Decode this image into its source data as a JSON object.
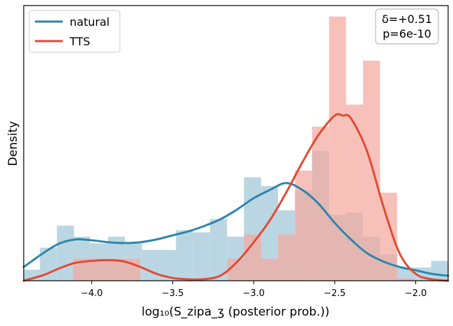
{
  "chart_data": {
    "type": "histogram",
    "xlabel": "log₁₀(S_zipa_ʒ (posterior prob.))",
    "ylabel": "Density",
    "xlim": [
      -4.42,
      -1.8
    ],
    "ylim": [
      0,
      1.0
    ],
    "x_ticks": [
      -4.0,
      -3.5,
      -3.0,
      -2.5,
      -2.0
    ],
    "x_tick_labels": [
      "−4.0",
      "−3.5",
      "−3.0",
      "−2.5",
      "−2.0"
    ],
    "y_ticks_shown": false,
    "grid": false,
    "legend_position": "top-left",
    "annotation": {
      "lines": [
        "δ=+0.51",
        "p=6e-10"
      ],
      "position": "top-right"
    },
    "series": [
      {
        "name": "natural",
        "color": "#2e86ab",
        "hist_color": "#b7d4e1",
        "hist_bins": [
          {
            "x0": -4.42,
            "x1": -4.32,
            "h": 0.04
          },
          {
            "x0": -4.32,
            "x1": -4.215,
            "h": 0.12
          },
          {
            "x0": -4.215,
            "x1": -4.11,
            "h": 0.2
          },
          {
            "x0": -4.11,
            "x1": -4.01,
            "h": 0.16
          },
          {
            "x0": -4.01,
            "x1": -3.9,
            "h": 0.136
          },
          {
            "x0": -3.9,
            "x1": -3.795,
            "h": 0.16
          },
          {
            "x0": -3.795,
            "x1": -3.69,
            "h": 0.136
          },
          {
            "x0": -3.69,
            "x1": -3.585,
            "h": 0.112
          },
          {
            "x0": -3.585,
            "x1": -3.48,
            "h": 0.112
          },
          {
            "x0": -3.48,
            "x1": -3.375,
            "h": 0.184
          },
          {
            "x0": -3.375,
            "x1": -3.27,
            "h": 0.176
          },
          {
            "x0": -3.27,
            "x1": -3.165,
            "h": 0.224
          },
          {
            "x0": -3.165,
            "x1": -3.06,
            "h": 0.16
          },
          {
            "x0": -3.06,
            "x1": -2.955,
            "h": 0.376
          },
          {
            "x0": -2.955,
            "x1": -2.85,
            "h": 0.344
          },
          {
            "x0": -2.85,
            "x1": -2.745,
            "h": 0.256
          },
          {
            "x0": -2.745,
            "x1": -2.64,
            "h": 0.328
          },
          {
            "x0": -2.64,
            "x1": -2.535,
            "h": 0.472
          },
          {
            "x0": -2.535,
            "x1": -2.43,
            "h": 0.24
          },
          {
            "x0": -2.43,
            "x1": -2.325,
            "h": 0.248
          },
          {
            "x0": -2.325,
            "x1": -2.22,
            "h": 0.16
          },
          {
            "x0": -2.22,
            "x1": -2.115,
            "h": 0.096
          },
          {
            "x0": -2.115,
            "x1": -2.01,
            "h": 0.048
          },
          {
            "x0": -2.01,
            "x1": -1.905,
            "h": 0.048
          },
          {
            "x0": -1.905,
            "x1": -1.8,
            "h": 0.072
          }
        ],
        "kde": {
          "x": [
            -4.42,
            -4.3,
            -4.2,
            -4.1,
            -4.0,
            -3.9,
            -3.8,
            -3.7,
            -3.6,
            -3.5,
            -3.4,
            -3.3,
            -3.2,
            -3.1,
            -3.0,
            -2.9,
            -2.8,
            -2.7,
            -2.6,
            -2.5,
            -2.4,
            -2.3,
            -2.2,
            -2.1,
            -2.0,
            -1.9,
            -1.8
          ],
          "y": [
            0.05,
            0.1,
            0.135,
            0.15,
            0.147,
            0.14,
            0.137,
            0.14,
            0.15,
            0.165,
            0.18,
            0.2,
            0.225,
            0.26,
            0.3,
            0.33,
            0.355,
            0.33,
            0.28,
            0.21,
            0.15,
            0.1,
            0.07,
            0.05,
            0.038,
            0.025,
            0.018
          ]
        }
      },
      {
        "name": "TTS",
        "color": "#e34a33",
        "hist_color": "#f4a9a0",
        "hist_bins": [
          {
            "x0": -4.115,
            "x1": -3.7,
            "h": 0.08
          },
          {
            "x0": -3.165,
            "x1": -3.06,
            "h": 0.08
          },
          {
            "x0": -3.06,
            "x1": -2.955,
            "h": 0.168
          },
          {
            "x0": -2.955,
            "x1": -2.85,
            "h": 0.08
          },
          {
            "x0": -2.85,
            "x1": -2.745,
            "h": 0.168
          },
          {
            "x0": -2.745,
            "x1": -2.64,
            "h": 0.4
          },
          {
            "x0": -2.64,
            "x1": -2.535,
            "h": 0.56
          },
          {
            "x0": -2.535,
            "x1": -2.43,
            "h": 0.96
          },
          {
            "x0": -2.43,
            "x1": -2.325,
            "h": 0.64
          },
          {
            "x0": -2.325,
            "x1": -2.22,
            "h": 0.8
          },
          {
            "x0": -2.22,
            "x1": -2.115,
            "h": 0.32
          },
          {
            "x0": -2.115,
            "x1": -2.01,
            "h": 0.008
          }
        ],
        "kde": {
          "x": [
            -4.42,
            -4.3,
            -4.2,
            -4.1,
            -4.0,
            -3.9,
            -3.8,
            -3.7,
            -3.6,
            -3.5,
            -3.4,
            -3.3,
            -3.2,
            -3.1,
            -3.0,
            -2.9,
            -2.8,
            -2.7,
            -2.6,
            -2.5,
            -2.45,
            -2.4,
            -2.3,
            -2.2,
            -2.1,
            -2.0,
            -1.9,
            -1.8
          ],
          "y": [
            0.0,
            0.02,
            0.045,
            0.065,
            0.072,
            0.075,
            0.07,
            0.05,
            0.025,
            0.01,
            0.005,
            0.006,
            0.02,
            0.07,
            0.14,
            0.22,
            0.32,
            0.43,
            0.53,
            0.6,
            0.6,
            0.59,
            0.47,
            0.27,
            0.1,
            0.025,
            0.005,
            0.0
          ]
        }
      }
    ]
  }
}
